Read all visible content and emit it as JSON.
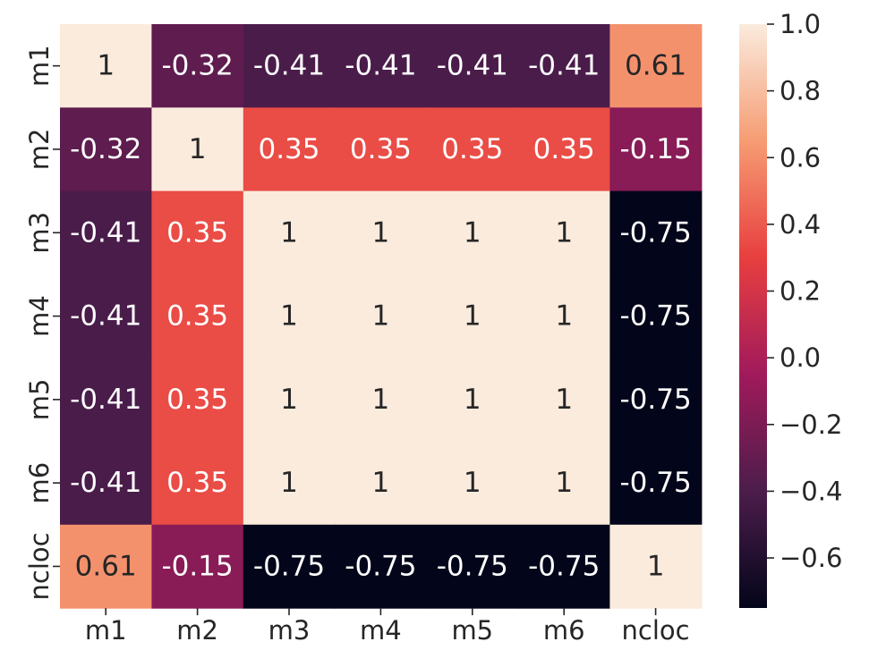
{
  "chart_data": {
    "type": "heatmap",
    "x_labels": [
      "m1",
      "m2",
      "m3",
      "m4",
      "m5",
      "m6",
      "ncloc"
    ],
    "y_labels": [
      "m1",
      "m2",
      "m3",
      "m4",
      "m5",
      "m6",
      "ncloc"
    ],
    "values": [
      [
        1,
        -0.32,
        -0.41,
        -0.41,
        -0.41,
        -0.41,
        0.61
      ],
      [
        -0.32,
        1,
        0.35,
        0.35,
        0.35,
        0.35,
        -0.15
      ],
      [
        -0.41,
        0.35,
        1,
        1,
        1,
        1,
        -0.75
      ],
      [
        -0.41,
        0.35,
        1,
        1,
        1,
        1,
        -0.75
      ],
      [
        -0.41,
        0.35,
        1,
        1,
        1,
        1,
        -0.75
      ],
      [
        -0.41,
        0.35,
        1,
        1,
        1,
        1,
        -0.75
      ],
      [
        0.61,
        -0.15,
        -0.75,
        -0.75,
        -0.75,
        -0.75,
        1
      ]
    ],
    "cell_labels": [
      [
        "1",
        "-0.32",
        "-0.41",
        "-0.41",
        "-0.41",
        "-0.41",
        "0.61"
      ],
      [
        "-0.32",
        "1",
        "0.35",
        "0.35",
        "0.35",
        "0.35",
        "-0.15"
      ],
      [
        "-0.41",
        "0.35",
        "1",
        "1",
        "1",
        "1",
        "-0.75"
      ],
      [
        "-0.41",
        "0.35",
        "1",
        "1",
        "1",
        "1",
        "-0.75"
      ],
      [
        "-0.41",
        "0.35",
        "1",
        "1",
        "1",
        "1",
        "-0.75"
      ],
      [
        "-0.41",
        "0.35",
        "1",
        "1",
        "1",
        "1",
        "-0.75"
      ],
      [
        "0.61",
        "-0.15",
        "-0.75",
        "-0.75",
        "-0.75",
        "-0.75",
        "1"
      ]
    ],
    "colorbar": {
      "range": [
        -0.75,
        1.0
      ],
      "ticks": [
        1.0,
        0.8,
        0.6,
        0.4,
        0.2,
        0.0,
        -0.2,
        -0.4,
        -0.6
      ],
      "tick_labels": [
        "1.0",
        "0.8",
        "0.6",
        "0.4",
        "0.2",
        "0.0",
        "−0.2",
        "−0.4",
        "−0.6"
      ],
      "colormap": "rocket",
      "colormap_stops": [
        "#03051a",
        "#4c1d4b",
        "#a11a5b",
        "#e83f3f",
        "#f69c73",
        "#faebdd"
      ]
    },
    "title": "",
    "xlabel": "",
    "ylabel": ""
  }
}
